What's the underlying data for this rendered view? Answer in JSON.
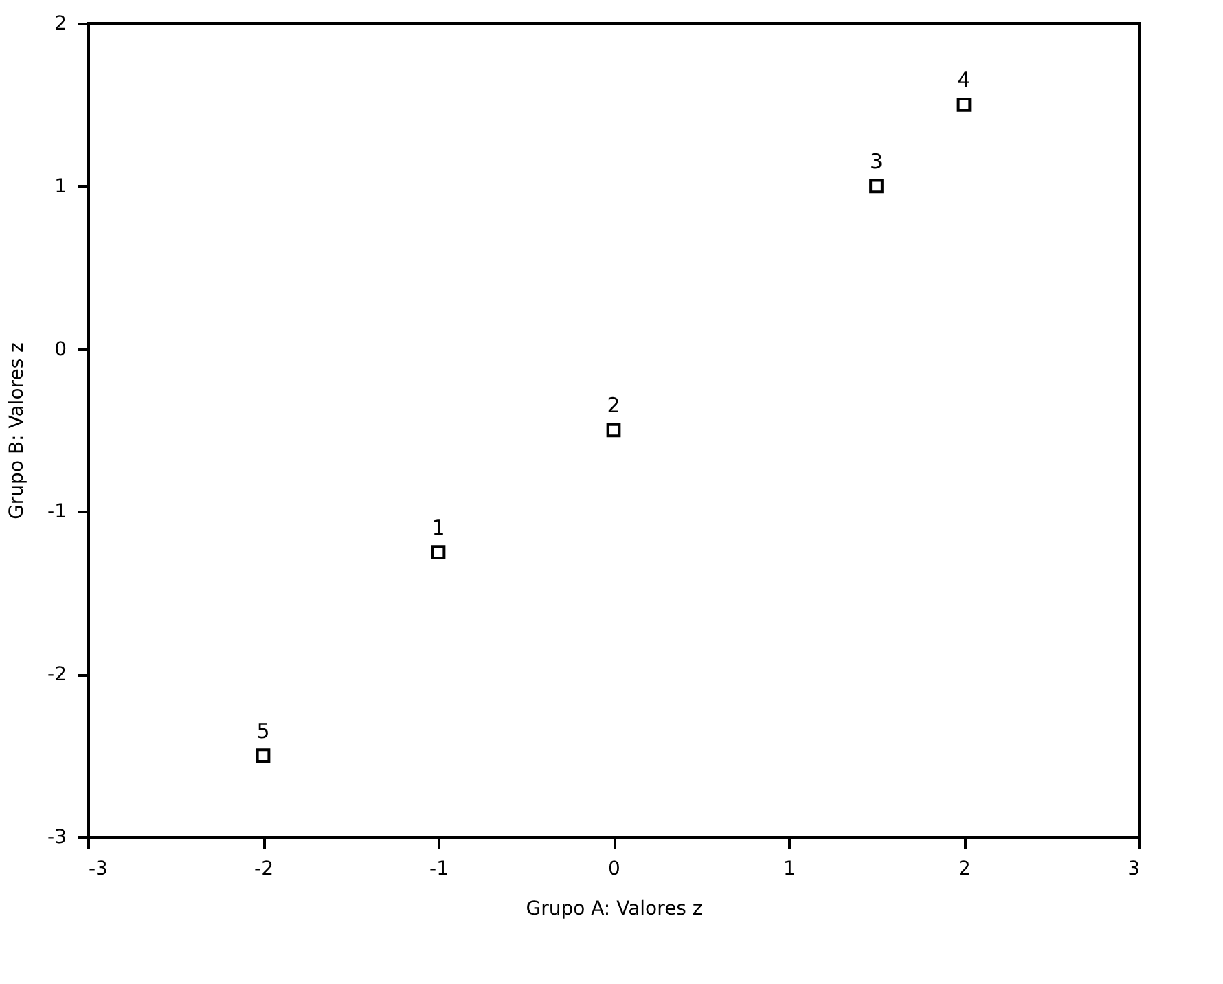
{
  "chart_data": {
    "type": "scatter",
    "xlabel": "Grupo A: Valores z",
    "ylabel": "Grupo B: Valores z",
    "x": [
      -1,
      0,
      1.5,
      2,
      -2
    ],
    "series": [
      {
        "color": "#000000",
        "values": [
          -1.25,
          -0.5,
          1,
          1.5,
          -2.5
        ]
      }
    ],
    "annotations": [
      {
        "text": "1",
        "x": -1,
        "y": -1.25
      },
      {
        "text": "2",
        "x": 0,
        "y": -0.5
      },
      {
        "text": "3",
        "x": 1.5,
        "y": 1
      },
      {
        "text": "4",
        "x": 2,
        "y": 1.5
      },
      {
        "text": "5",
        "x": -2,
        "y": -2.5
      }
    ],
    "xlim": [
      -3,
      3
    ],
    "xticks": [
      -3,
      -2,
      -1,
      0,
      1,
      2,
      3
    ],
    "ylim": [
      -3,
      2
    ],
    "yticks": [
      -3,
      -2,
      -1,
      0,
      1,
      2
    ],
    "grid": false,
    "marker": "square"
  }
}
